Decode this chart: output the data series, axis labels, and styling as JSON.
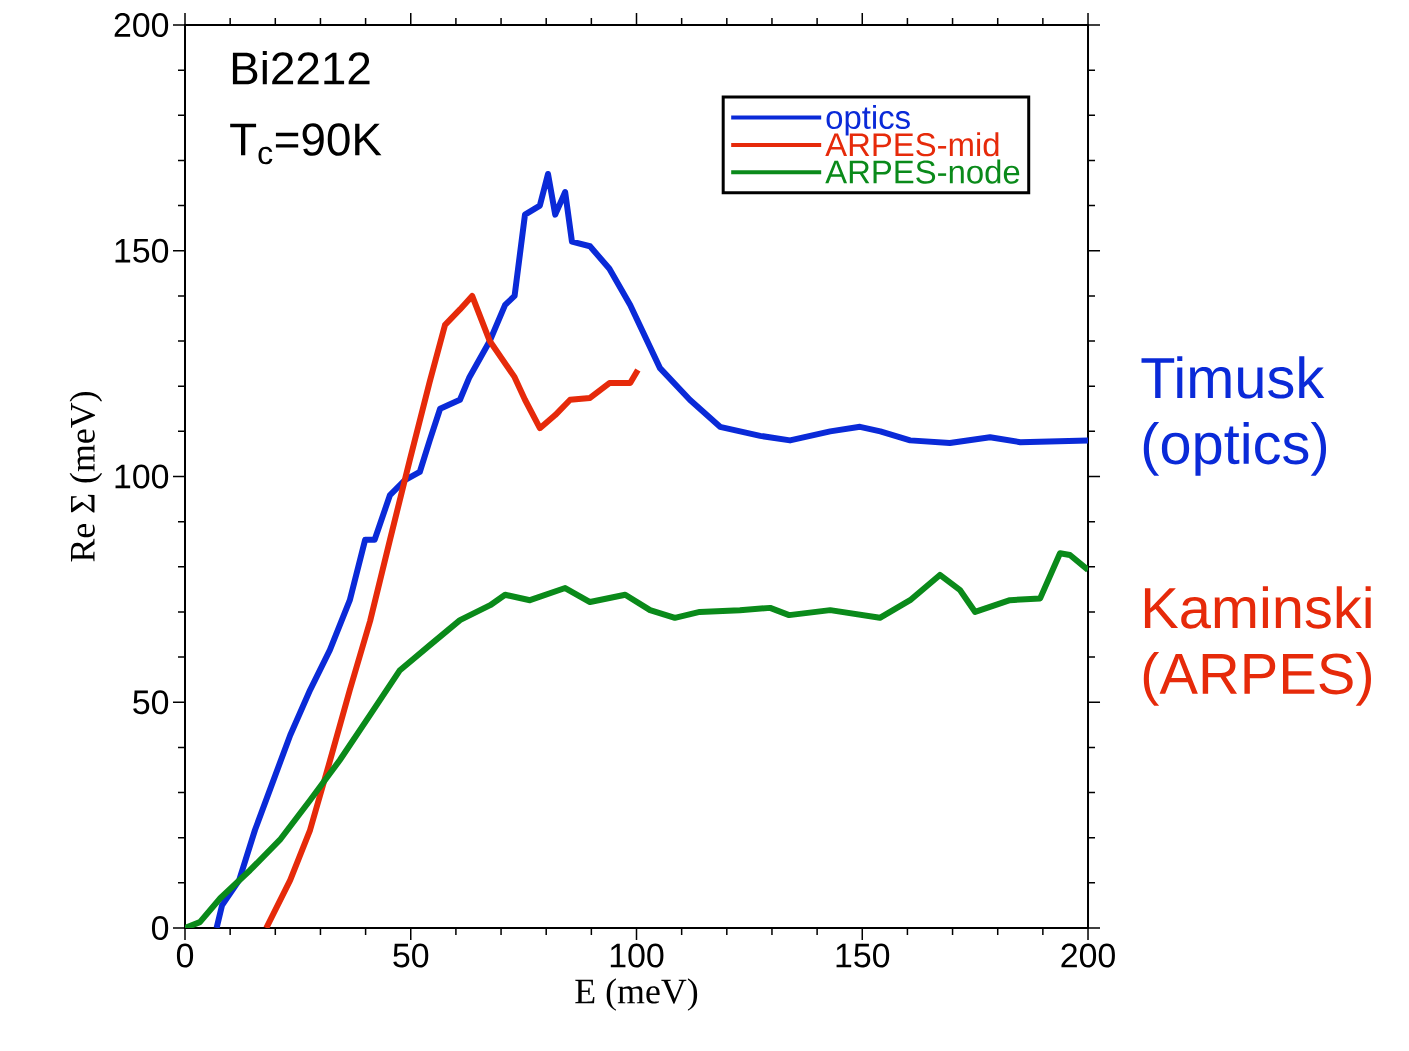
{
  "chart_data": {
    "type": "line",
    "xlabel": "E (meV)",
    "ylabel": "Re Σ (meV)",
    "xlim": [
      0,
      200
    ],
    "ylim": [
      0,
      200
    ],
    "xticks": [
      0,
      50,
      100,
      150,
      200
    ],
    "yticks": [
      0,
      50,
      100,
      150,
      200
    ],
    "legend": "top right",
    "annotations": [
      "Bi2212",
      "T$_{c}$=90K",
      "Timusk (optics)",
      "Kaminski (ARPES)"
    ],
    "series": [
      {
        "name": "optics",
        "color": "#0a2ad8",
        "x": [
          7,
          8.2,
          12,
          15.5,
          18.8,
          23.3,
          27.7,
          32.1,
          36.5,
          39.9,
          42,
          45.4,
          48.7,
          52,
          54.2,
          56.5,
          60.9,
          63,
          67.5,
          70.9,
          73,
          75.3,
          78.6,
          80.4,
          82,
          84.2,
          85.7,
          89.7,
          94,
          98.6,
          105.2,
          111.8,
          118.5,
          127.4,
          134,
          142.9,
          149.5,
          154,
          160.6,
          169.4,
          178.3,
          185,
          200
        ],
        "values": [
          0,
          5,
          10.6,
          21.7,
          30.6,
          42.7,
          52.7,
          61.6,
          72.6,
          86,
          86,
          95.9,
          99.2,
          101,
          108,
          115,
          117,
          122,
          130,
          138,
          140,
          158,
          160,
          167,
          158,
          163,
          152,
          151,
          146,
          138,
          124,
          117,
          111,
          109,
          108,
          110,
          111,
          110,
          108,
          107.4,
          108.7,
          107.6,
          108
        ]
      },
      {
        "name": "ARPES-mid",
        "color": "#e62a0a",
        "x": [
          18,
          23.3,
          27.7,
          32.1,
          36.5,
          41,
          45.4,
          49.8,
          54.2,
          57.6,
          60.9,
          63.6,
          67.5,
          73,
          75.3,
          78.6,
          82,
          85.3,
          89.7,
          94,
          98.6,
          100.3
        ],
        "values": [
          0,
          10.6,
          21.7,
          37,
          52.7,
          68,
          86,
          103.7,
          121,
          133.6,
          137,
          140,
          130,
          122,
          117,
          110.7,
          113.6,
          117,
          117.4,
          120.7,
          120.7,
          123.6
        ]
      },
      {
        "name": "ARPES-node",
        "color": "#0a8a1a",
        "x": [
          0,
          3.3,
          7.8,
          14.4,
          21,
          27.7,
          34.3,
          41,
          47.6,
          54.3,
          60.9,
          67.6,
          70.9,
          76.4,
          84.2,
          89.7,
          97.5,
          103,
          108.5,
          114,
          122.9,
          129.6,
          133.8,
          142.9,
          153.9,
          160.6,
          167.2,
          171.6,
          175,
          182.7,
          189.4,
          193.8,
          196,
          200
        ],
        "values": [
          0,
          1.3,
          6.6,
          12.8,
          19.5,
          28.3,
          37.2,
          47.2,
          57.1,
          62.7,
          68.2,
          71.5,
          73.8,
          72.6,
          75.3,
          72.2,
          73.8,
          70.4,
          68.7,
          70,
          70.4,
          70.9,
          69.3,
          70.4,
          68.7,
          72.6,
          78.2,
          74.9,
          70,
          72.6,
          73,
          83,
          82.6,
          79.3
        ]
      }
    ]
  }
}
